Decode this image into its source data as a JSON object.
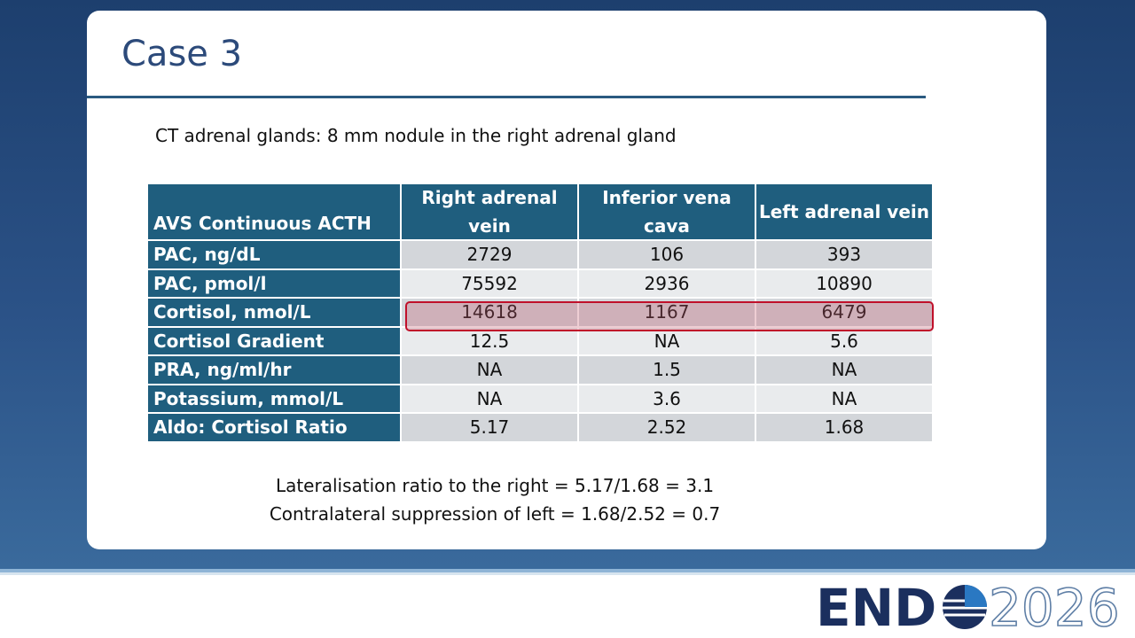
{
  "title": "Case 3",
  "subtitle": "CT adrenal glands: 8 mm nodule in the right adrenal gland",
  "table": {
    "header": [
      "AVS Continuous ACTH",
      "Right adrenal vein",
      "Inferior vena cava",
      "Left adrenal vein"
    ],
    "rows": [
      [
        "PAC, ng/dL",
        "2729",
        "106",
        "393"
      ],
      [
        "PAC, pmol/l",
        "75592",
        "2936",
        "10890"
      ],
      [
        "Cortisol, nmol/L",
        "14618",
        "1167",
        "6479"
      ],
      [
        "Cortisol Gradient",
        "12.5",
        "NA",
        "5.6"
      ],
      [
        "PRA, ng/ml/hr",
        "NA",
        "1.5",
        "NA"
      ],
      [
        "Potassium, mmol/L",
        "NA",
        "3.6",
        "NA"
      ],
      [
        "Aldo: Cortisol Ratio",
        "5.17",
        "2.52",
        "1.68"
      ]
    ]
  },
  "notes": [
    "Lateralisation ratio to the right = 5.17/1.68 = 3.1",
    "Contralateral suppression of left = 1.68/2.52 = 0.7"
  ],
  "logo": {
    "left": "END",
    "right": "2026"
  }
}
